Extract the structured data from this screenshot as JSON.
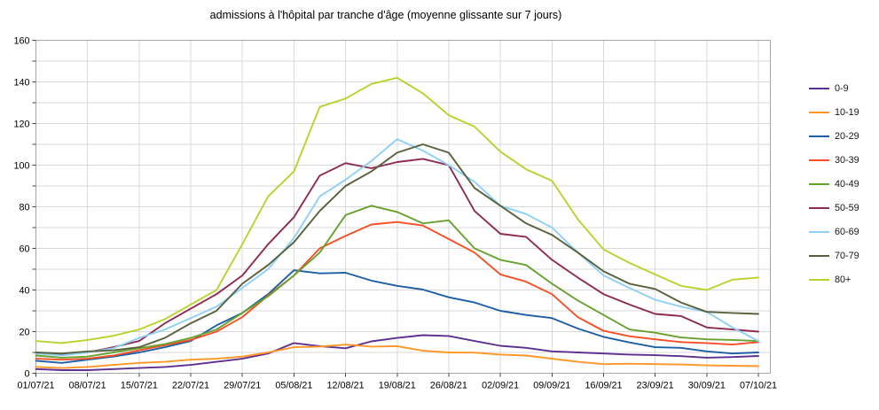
{
  "title": "admissions à l'hôpital par tranche d'âge (moyenne glissante sur 7 jours)",
  "y_axis": {
    "min": 0,
    "max": 160,
    "label_step": 20,
    "grid_step": 10,
    "tick_labels": [
      "0",
      "20",
      "40",
      "60",
      "80",
      "100",
      "120",
      "140",
      "160"
    ]
  },
  "x_axis": {
    "tick_labels": [
      "01/07/21",
      "08/07/21",
      "15/07/21",
      "22/07/21",
      "29/07/21",
      "05/08/21",
      "12/08/21",
      "19/08/21",
      "26/08/21",
      "02/09/21",
      "09/09/21",
      "16/09/21",
      "23/09/21",
      "30/09/21",
      "07/10/21"
    ],
    "days_per_tick": 7
  },
  "legend": {
    "position": "right"
  },
  "colors": {
    "grid": "#d9d9d9",
    "plot_border": "#a6a6a6",
    "tick": "#404040",
    "axis_text": "#000000"
  },
  "chart_data": {
    "type": "line",
    "title": "admissions à l'hôpital par tranche d'âge (moyenne glissante sur 7 jours)",
    "xlabel": "",
    "ylabel": "",
    "ylim": [
      0,
      160
    ],
    "grid": true,
    "legend_position": "right",
    "x_unit": "jours depuis 01/07/21",
    "x": [
      0,
      3.5,
      7,
      10.5,
      14,
      17.5,
      21,
      24.5,
      28,
      31.5,
      35,
      38.5,
      42,
      45.5,
      49,
      52.5,
      56,
      59.5,
      63,
      66.5,
      70,
      73.5,
      77,
      80.5,
      84,
      87.5,
      91,
      94.5,
      98
    ],
    "series": [
      {
        "name": "0-9",
        "color": "#5e2f91",
        "values": [
          2,
          1.5,
          1.5,
          2,
          2.5,
          3,
          4,
          5.5,
          7,
          9.5,
          14.5,
          13,
          12,
          15.3,
          17,
          18.3,
          17.9,
          15.5,
          13.2,
          12.2,
          10.5,
          10,
          9.5,
          9,
          8.7,
          8.2,
          7.5,
          7.8,
          8.3
        ]
      },
      {
        "name": "10-19",
        "color": "#ff9626",
        "values": [
          3,
          2.5,
          3,
          4,
          5,
          5.5,
          6.5,
          7,
          8,
          10,
          12.5,
          12.8,
          13.8,
          12.8,
          13,
          10.8,
          10,
          9.9,
          9,
          8.5,
          7,
          5.5,
          4.4,
          4.6,
          4.4,
          4.2,
          3.8,
          3.6,
          3.4
        ]
      },
      {
        "name": "20-29",
        "color": "#1c5fa5",
        "values": [
          6,
          5,
          6.5,
          8,
          10,
          12.5,
          15.5,
          23,
          29,
          38,
          49.5,
          48,
          48.3,
          44.5,
          42,
          40.2,
          36.5,
          34,
          30,
          28,
          26.5,
          21.5,
          17.5,
          14.8,
          12.5,
          12.2,
          10.5,
          9.5,
          10
        ]
      },
      {
        "name": "30-39",
        "color": "#f94e26",
        "values": [
          7,
          6.5,
          7,
          8.5,
          11,
          13.5,
          16,
          20,
          27,
          37.4,
          47,
          60,
          66,
          71.5,
          72.7,
          71,
          64.5,
          58,
          47.5,
          44,
          38,
          27,
          20.4,
          17.8,
          16.3,
          15,
          14.5,
          13.8,
          15
        ]
      },
      {
        "name": "40-49",
        "color": "#67a22f",
        "values": [
          8.5,
          7.5,
          8,
          10,
          12,
          14,
          17,
          21,
          29,
          37,
          47,
          58,
          76,
          80.5,
          77.5,
          72,
          73.5,
          60,
          54.5,
          52,
          43,
          35,
          28,
          21,
          19.5,
          17.2,
          16.3,
          16,
          15.5
        ]
      },
      {
        "name": "50-59",
        "color": "#8e2a52",
        "values": [
          9.5,
          9,
          10,
          12.5,
          15.5,
          24,
          31,
          38,
          47,
          62,
          75,
          95,
          101,
          98.5,
          101.5,
          103,
          100,
          78,
          67,
          65.5,
          54.5,
          46,
          38,
          33,
          28.5,
          27.5,
          22,
          21,
          20
        ]
      },
      {
        "name": "60-69",
        "color": "#8ed0f7",
        "values": [
          9.5,
          8.5,
          10,
          12,
          17,
          21,
          26.5,
          32,
          41,
          50,
          65,
          85,
          93,
          102,
          112.5,
          107,
          100,
          92,
          80.5,
          76.5,
          70,
          58,
          47,
          41,
          35.3,
          32,
          29.5,
          22,
          15.5
        ]
      },
      {
        "name": "70-79",
        "color": "#57623c",
        "values": [
          10,
          9.5,
          10.5,
          11,
          12.5,
          17,
          24,
          30,
          43,
          52,
          63,
          78,
          90,
          97,
          106,
          110,
          106,
          89,
          80.5,
          72,
          66.5,
          58,
          49,
          43,
          40.5,
          34,
          29.5,
          29,
          28.5
        ]
      },
      {
        "name": "80+",
        "color": "#bad22d",
        "values": [
          15.5,
          14.5,
          16,
          18,
          21,
          26,
          33,
          40,
          62,
          85,
          97,
          128,
          132,
          139,
          142,
          134.5,
          124,
          118.5,
          106.5,
          98,
          92.5,
          74,
          59.5,
          53,
          47.5,
          42,
          40,
          45,
          46
        ]
      }
    ]
  }
}
